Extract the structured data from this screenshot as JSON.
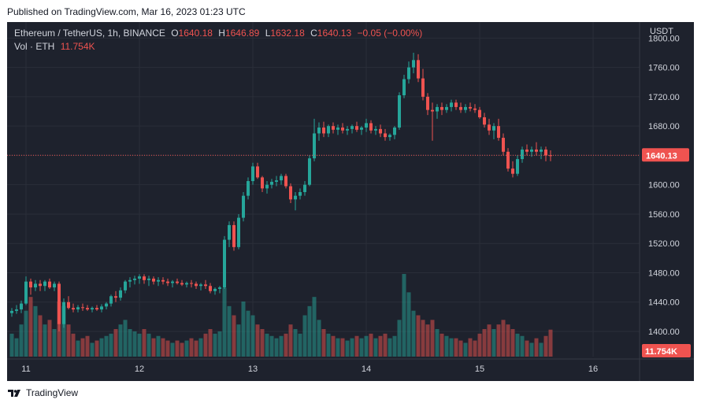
{
  "header": {
    "published": "Published on TradingView.com, Mar 16, 2023 01:23 UTC"
  },
  "legend": {
    "symbol": "Ethereum / TetherUS, 1h, BINANCE",
    "o_key": "O",
    "o": "1640.18",
    "h_key": "H",
    "h": "1646.89",
    "l_key": "L",
    "l": "1632.18",
    "c_key": "C",
    "c": "1640.13",
    "change": "−0.05 (−0.00%)",
    "vol_label": "Vol · ETH",
    "vol_value": "11.754K"
  },
  "footer": {
    "brand": "TradingView"
  },
  "colors": {
    "up": "#26a69a",
    "down": "#ef5350",
    "background": "#1e222d",
    "grid": "#2a2e39",
    "text": "#d1d4dc"
  },
  "chart_data": {
    "type": "candlestick",
    "symbol": "Ethereum / TetherUS",
    "interval": "1h",
    "exchange": "BINANCE",
    "currency": "USDT",
    "y_ticks": [
      1400,
      1440,
      1480,
      1520,
      1560,
      1600,
      1640,
      1680,
      1720,
      1760,
      1800
    ],
    "y_tick_labels": [
      "1400.00",
      "1440.00",
      "1480.00",
      "1520.00",
      "1560.00",
      "1600.00",
      "1640.00",
      "1680.00",
      "1720.00",
      "1760.00",
      "1800.00"
    ],
    "ylim": [
      1390,
      1795
    ],
    "x_tick_labels": [
      {
        "label": "11",
        "index": 3
      },
      {
        "label": "12",
        "index": 27
      },
      {
        "label": "13",
        "index": 51
      },
      {
        "label": "14",
        "index": 75
      },
      {
        "label": "15",
        "index": 99
      },
      {
        "label": "16",
        "index": 123
      }
    ],
    "last_price_label": "1640.13",
    "last_price": 1640.13,
    "last_volume_label": "11.754K",
    "grid": true,
    "candles": [
      [
        1425,
        1432,
        1420,
        1428,
        10
      ],
      [
        1428,
        1436,
        1424,
        1430,
        8
      ],
      [
        1430,
        1442,
        1425,
        1438,
        14
      ],
      [
        1438,
        1475,
        1436,
        1468,
        20
      ],
      [
        1468,
        1472,
        1450,
        1460,
        26
      ],
      [
        1460,
        1470,
        1455,
        1465,
        22
      ],
      [
        1465,
        1470,
        1455,
        1462,
        18
      ],
      [
        1462,
        1470,
        1455,
        1468,
        14
      ],
      [
        1468,
        1472,
        1458,
        1460,
        16
      ],
      [
        1460,
        1468,
        1455,
        1465,
        12
      ],
      [
        1465,
        1468,
        1400,
        1410,
        24
      ],
      [
        1410,
        1445,
        1405,
        1440,
        22
      ],
      [
        1440,
        1448,
        1430,
        1432,
        14
      ],
      [
        1432,
        1438,
        1426,
        1430,
        10
      ],
      [
        1430,
        1436,
        1426,
        1433,
        7
      ],
      [
        1433,
        1438,
        1428,
        1432,
        8
      ],
      [
        1432,
        1436,
        1428,
        1430,
        9
      ],
      [
        1430,
        1434,
        1426,
        1432,
        6
      ],
      [
        1432,
        1436,
        1428,
        1430,
        7
      ],
      [
        1430,
        1437,
        1426,
        1434,
        8
      ],
      [
        1434,
        1440,
        1430,
        1438,
        9
      ],
      [
        1438,
        1450,
        1434,
        1448,
        10
      ],
      [
        1448,
        1455,
        1440,
        1446,
        12
      ],
      [
        1446,
        1460,
        1442,
        1456,
        14
      ],
      [
        1456,
        1470,
        1452,
        1468,
        16
      ],
      [
        1468,
        1474,
        1460,
        1470,
        12
      ],
      [
        1470,
        1476,
        1464,
        1472,
        11
      ],
      [
        1472,
        1478,
        1465,
        1475,
        10
      ],
      [
        1475,
        1478,
        1465,
        1470,
        12
      ],
      [
        1470,
        1476,
        1462,
        1472,
        10
      ],
      [
        1472,
        1475,
        1464,
        1468,
        8
      ],
      [
        1468,
        1474,
        1462,
        1470,
        9
      ],
      [
        1470,
        1474,
        1464,
        1468,
        8
      ],
      [
        1468,
        1472,
        1462,
        1466,
        7
      ],
      [
        1466,
        1470,
        1460,
        1468,
        6
      ],
      [
        1468,
        1472,
        1464,
        1466,
        7
      ],
      [
        1466,
        1470,
        1462,
        1464,
        6
      ],
      [
        1464,
        1468,
        1460,
        1466,
        7
      ],
      [
        1466,
        1470,
        1460,
        1465,
        8
      ],
      [
        1465,
        1468,
        1458,
        1462,
        7
      ],
      [
        1462,
        1466,
        1456,
        1464,
        8
      ],
      [
        1464,
        1470,
        1458,
        1462,
        10
      ],
      [
        1462,
        1466,
        1452,
        1455,
        12
      ],
      [
        1455,
        1460,
        1450,
        1458,
        10
      ],
      [
        1458,
        1462,
        1452,
        1460,
        11
      ],
      [
        1460,
        1530,
        1458,
        1525,
        30
      ],
      [
        1525,
        1550,
        1515,
        1545,
        22
      ],
      [
        1545,
        1550,
        1510,
        1515,
        18
      ],
      [
        1515,
        1560,
        1512,
        1555,
        14
      ],
      [
        1555,
        1590,
        1550,
        1585,
        24
      ],
      [
        1585,
        1610,
        1580,
        1605,
        20
      ],
      [
        1605,
        1630,
        1600,
        1625,
        18
      ],
      [
        1625,
        1630,
        1608,
        1610,
        14
      ],
      [
        1610,
        1612,
        1590,
        1595,
        12
      ],
      [
        1595,
        1605,
        1588,
        1600,
        10
      ],
      [
        1600,
        1608,
        1595,
        1604,
        9
      ],
      [
        1604,
        1612,
        1598,
        1606,
        8
      ],
      [
        1606,
        1615,
        1600,
        1612,
        9
      ],
      [
        1612,
        1615,
        1595,
        1598,
        10
      ],
      [
        1598,
        1602,
        1575,
        1580,
        14
      ],
      [
        1580,
        1590,
        1565,
        1585,
        12
      ],
      [
        1585,
        1595,
        1580,
        1590,
        10
      ],
      [
        1590,
        1605,
        1585,
        1600,
        18
      ],
      [
        1600,
        1640,
        1598,
        1636,
        22
      ],
      [
        1636,
        1690,
        1632,
        1670,
        26
      ],
      [
        1670,
        1685,
        1660,
        1678,
        16
      ],
      [
        1678,
        1686,
        1665,
        1670,
        12
      ],
      [
        1670,
        1682,
        1665,
        1680,
        10
      ],
      [
        1680,
        1685,
        1670,
        1675,
        9
      ],
      [
        1675,
        1682,
        1668,
        1678,
        8
      ],
      [
        1678,
        1684,
        1670,
        1674,
        8
      ],
      [
        1674,
        1680,
        1668,
        1676,
        7
      ],
      [
        1676,
        1682,
        1670,
        1680,
        8
      ],
      [
        1680,
        1686,
        1672,
        1675,
        9
      ],
      [
        1675,
        1680,
        1668,
        1678,
        8
      ],
      [
        1678,
        1690,
        1672,
        1684,
        9
      ],
      [
        1684,
        1688,
        1670,
        1674,
        10
      ],
      [
        1674,
        1680,
        1668,
        1676,
        8
      ],
      [
        1676,
        1682,
        1665,
        1670,
        9
      ],
      [
        1670,
        1676,
        1660,
        1665,
        10
      ],
      [
        1665,
        1670,
        1660,
        1668,
        8
      ],
      [
        1668,
        1680,
        1662,
        1678,
        9
      ],
      [
        1678,
        1726,
        1675,
        1722,
        16
      ],
      [
        1722,
        1750,
        1718,
        1744,
        36
      ],
      [
        1744,
        1768,
        1738,
        1760,
        28
      ],
      [
        1760,
        1780,
        1752,
        1770,
        20
      ],
      [
        1770,
        1778,
        1740,
        1745,
        18
      ],
      [
        1745,
        1758,
        1715,
        1720,
        16
      ],
      [
        1720,
        1725,
        1695,
        1702,
        14
      ],
      [
        1702,
        1712,
        1660,
        1700,
        16
      ],
      [
        1700,
        1710,
        1690,
        1706,
        12
      ],
      [
        1706,
        1712,
        1695,
        1702,
        10
      ],
      [
        1702,
        1710,
        1698,
        1706,
        9
      ],
      [
        1706,
        1716,
        1700,
        1712,
        8
      ],
      [
        1712,
        1716,
        1702,
        1706,
        8
      ],
      [
        1706,
        1712,
        1698,
        1702,
        7
      ],
      [
        1702,
        1710,
        1698,
        1706,
        6
      ],
      [
        1706,
        1712,
        1700,
        1704,
        8
      ],
      [
        1704,
        1710,
        1698,
        1702,
        7
      ],
      [
        1702,
        1706,
        1690,
        1692,
        10
      ],
      [
        1692,
        1698,
        1678,
        1682,
        12
      ],
      [
        1682,
        1690,
        1668,
        1674,
        14
      ],
      [
        1674,
        1684,
        1662,
        1680,
        12
      ],
      [
        1680,
        1690,
        1660,
        1664,
        14
      ],
      [
        1664,
        1670,
        1640,
        1645,
        16
      ],
      [
        1645,
        1650,
        1618,
        1622,
        14
      ],
      [
        1622,
        1632,
        1610,
        1615,
        12
      ],
      [
        1615,
        1640,
        1612,
        1635,
        10
      ],
      [
        1635,
        1652,
        1630,
        1648,
        9
      ],
      [
        1648,
        1655,
        1640,
        1645,
        7
      ],
      [
        1645,
        1652,
        1638,
        1648,
        6
      ],
      [
        1648,
        1658,
        1640,
        1645,
        8
      ],
      [
        1645,
        1652,
        1635,
        1648,
        6
      ],
      [
        1648,
        1652,
        1632,
        1640,
        9
      ],
      [
        1640.18,
        1646.89,
        1632.18,
        1640.13,
        11.754
      ]
    ]
  }
}
